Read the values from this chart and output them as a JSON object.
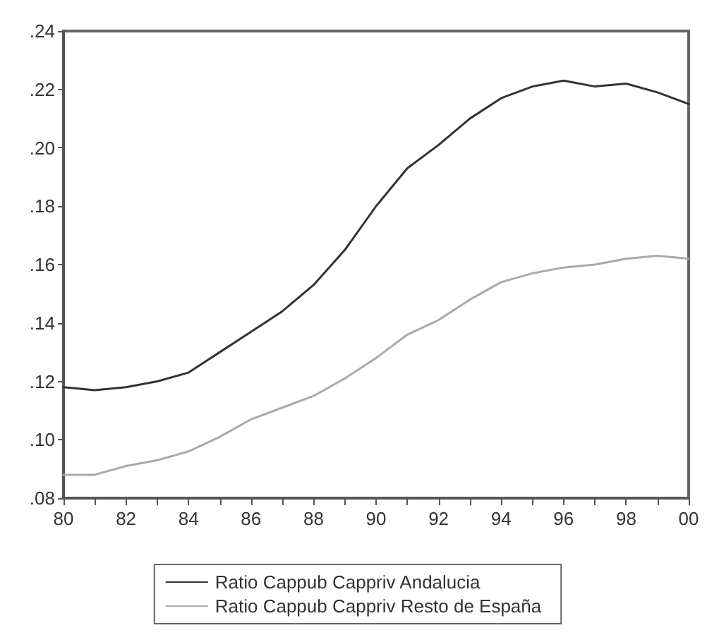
{
  "chart_data": {
    "type": "line",
    "x": [
      1980,
      1981,
      1982,
      1983,
      1984,
      1985,
      1986,
      1987,
      1988,
      1989,
      1990,
      1991,
      1992,
      1993,
      1994,
      1995,
      1996,
      1997,
      1998,
      1999,
      2000
    ],
    "series": [
      {
        "name": "Ratio Cappub Cappriv Andalucia",
        "color": "#333333",
        "values": [
          0.118,
          0.117,
          0.118,
          0.12,
          0.123,
          0.13,
          0.137,
          0.144,
          0.153,
          0.165,
          0.18,
          0.193,
          0.201,
          0.21,
          0.217,
          0.221,
          0.223,
          0.221,
          0.222,
          0.219,
          0.215
        ]
      },
      {
        "name": "Ratio Cappub Cappriv Resto de España",
        "color": "#aaaaaa",
        "values": [
          0.088,
          0.088,
          0.091,
          0.093,
          0.096,
          0.101,
          0.107,
          0.111,
          0.115,
          0.121,
          0.128,
          0.136,
          0.141,
          0.148,
          0.154,
          0.157,
          0.159,
          0.16,
          0.162,
          0.163,
          0.162
        ]
      }
    ],
    "xlim": [
      1980,
      2000
    ],
    "xticks": [
      {
        "value": 1980,
        "label": "80"
      },
      {
        "value": 1981,
        "label": null
      },
      {
        "value": 1982,
        "label": "82"
      },
      {
        "value": 1983,
        "label": null
      },
      {
        "value": 1984,
        "label": "84"
      },
      {
        "value": 1985,
        "label": null
      },
      {
        "value": 1986,
        "label": "86"
      },
      {
        "value": 1987,
        "label": null
      },
      {
        "value": 1988,
        "label": "88"
      },
      {
        "value": 1989,
        "label": null
      },
      {
        "value": 1990,
        "label": "90"
      },
      {
        "value": 1991,
        "label": null
      },
      {
        "value": 1992,
        "label": "92"
      },
      {
        "value": 1993,
        "label": null
      },
      {
        "value": 1994,
        "label": "94"
      },
      {
        "value": 1995,
        "label": null
      },
      {
        "value": 1996,
        "label": "96"
      },
      {
        "value": 1997,
        "label": null
      },
      {
        "value": 1998,
        "label": "98"
      },
      {
        "value": 1999,
        "label": null
      },
      {
        "value": 2000,
        "label": "00"
      }
    ],
    "ylim": [
      0.08,
      0.24
    ],
    "yticks": [
      {
        "value": 0.08,
        "label": ".08"
      },
      {
        "value": 0.1,
        "label": ".10"
      },
      {
        "value": 0.12,
        "label": ".12"
      },
      {
        "value": 0.14,
        "label": ".14"
      },
      {
        "value": 0.16,
        "label": ".16"
      },
      {
        "value": 0.18,
        "label": ".18"
      },
      {
        "value": 0.2,
        "label": ".20"
      },
      {
        "value": 0.22,
        "label": ".22"
      },
      {
        "value": 0.24,
        "label": ".24"
      }
    ],
    "legend": "bottom",
    "marker": "none",
    "line_style": "solid"
  }
}
